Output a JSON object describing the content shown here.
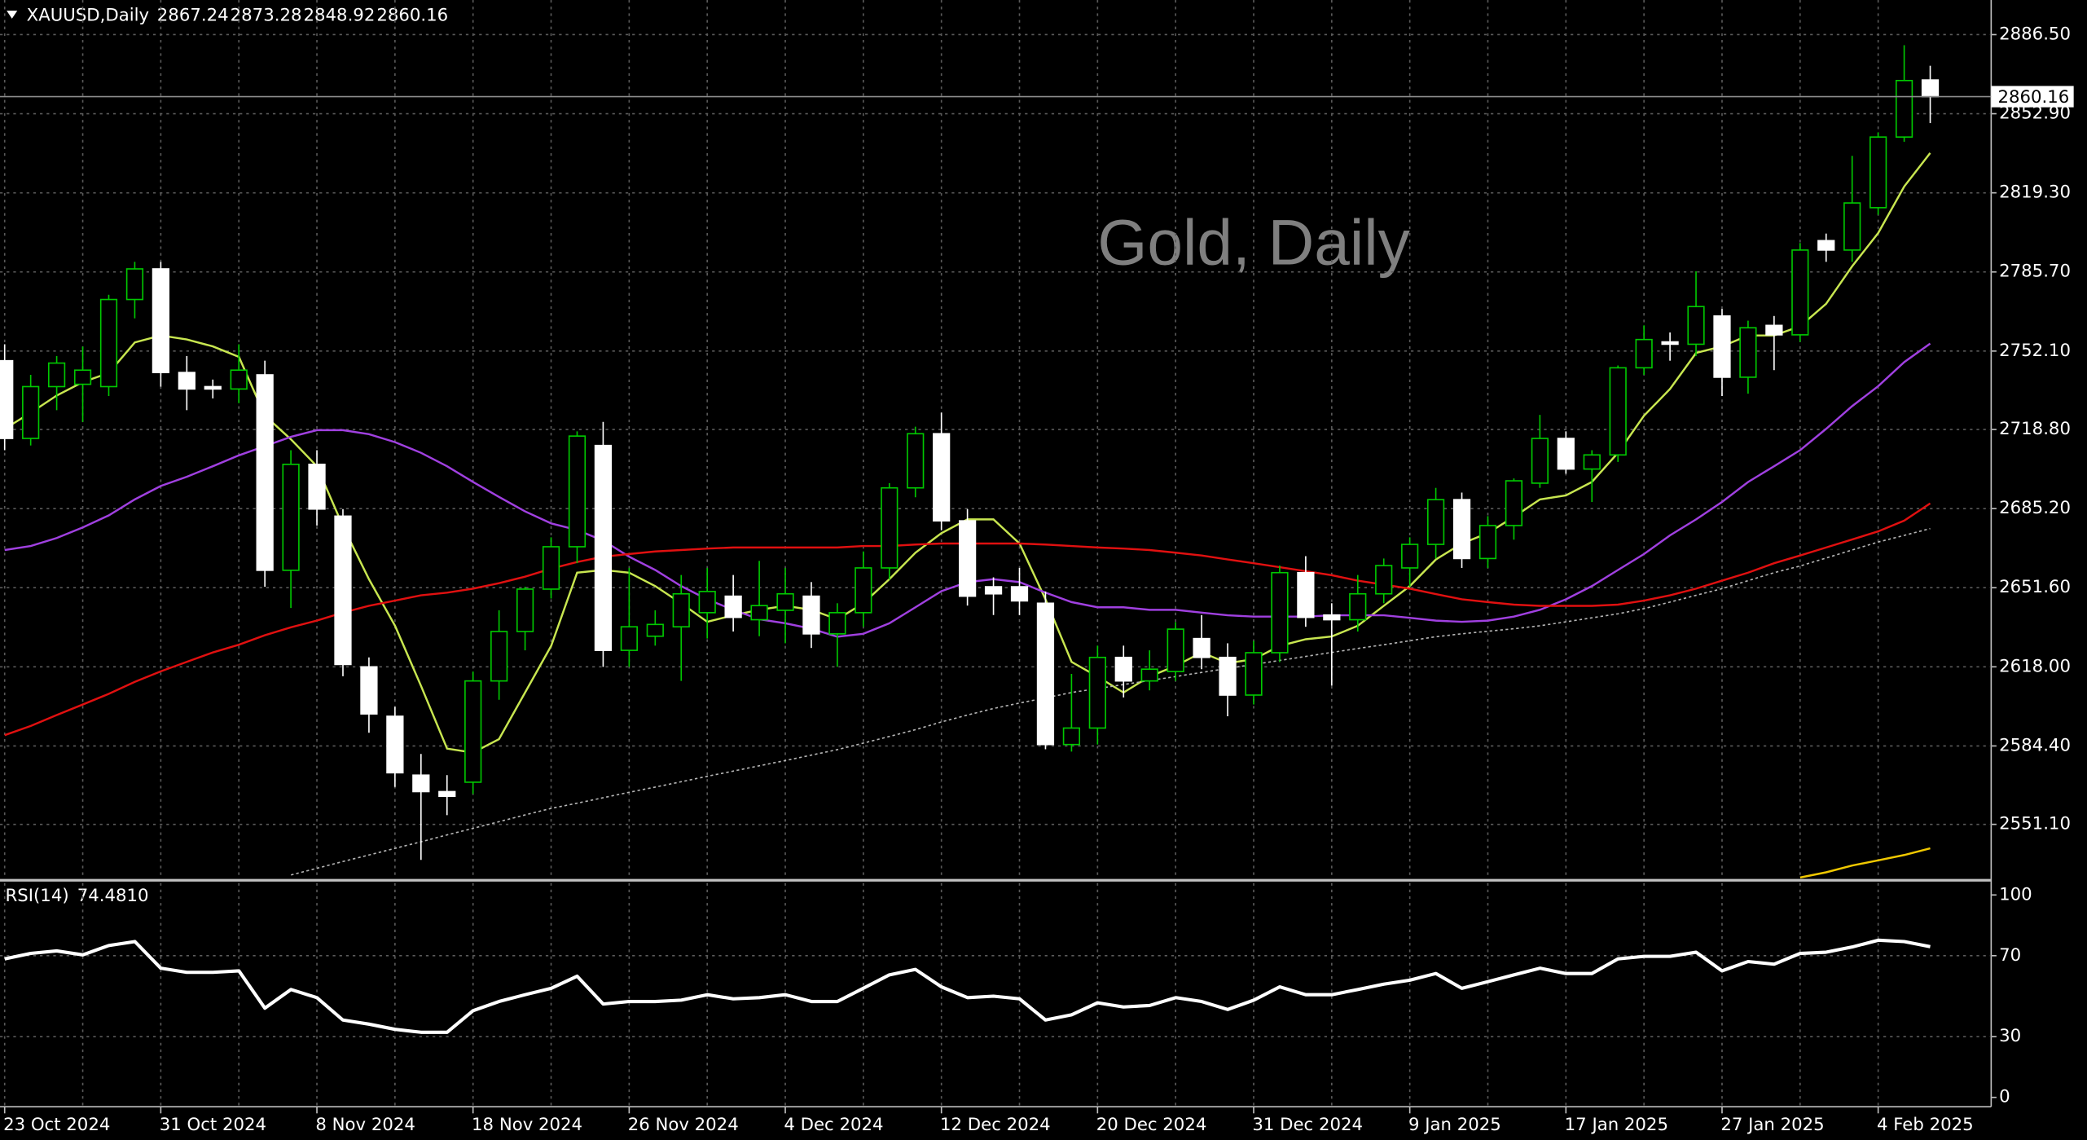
{
  "chart_data": {
    "type": "candlestick",
    "symbol": "XAUUSD,Daily",
    "title": "Gold, Daily",
    "categories": [
      "23 Oct 2024",
      null,
      null,
      null,
      null,
      null,
      "31 Oct 2024",
      null,
      null,
      null,
      null,
      null,
      "8 Nov 2024",
      null,
      null,
      null,
      null,
      null,
      "18 Nov 2024",
      null,
      null,
      null,
      null,
      null,
      "26 Nov 2024",
      null,
      null,
      null,
      null,
      null,
      "4 Dec 2024",
      null,
      null,
      null,
      null,
      null,
      "12 Dec 2024",
      null,
      null,
      null,
      null,
      null,
      "20 Dec 2024",
      null,
      null,
      null,
      null,
      null,
      "31 Dec 2024",
      null,
      null,
      null,
      null,
      null,
      "9 Jan 2025",
      null,
      null,
      null,
      null,
      null,
      "17 Jan 2025",
      null,
      null,
      null,
      null,
      null,
      "27 Jan 2025",
      null,
      null,
      null,
      null,
      null,
      "4 Feb 2025",
      null,
      null
    ],
    "open": [
      2748,
      2715,
      2737,
      2738,
      2737,
      2774,
      2787,
      2743,
      2737,
      2736,
      2742,
      2659,
      2704,
      2682,
      2618,
      2597,
      2572,
      2565,
      2569,
      2612,
      2633,
      2651,
      2669,
      2712,
      2625,
      2631,
      2635,
      2641,
      2648,
      2638,
      2642,
      2648,
      2632,
      2641,
      2660,
      2694,
      2717,
      2680,
      2652,
      2652,
      2645,
      2585,
      2592,
      2622,
      2612,
      2616,
      2630,
      2622,
      2606,
      2624,
      2658,
      2640,
      2638,
      2649,
      2660,
      2670,
      2689,
      2664,
      2678,
      2696,
      2715,
      2702,
      2708,
      2745,
      2756,
      2755,
      2767,
      2741,
      2763,
      2759,
      2799,
      2795,
      2813,
      2843,
      2867.24
    ],
    "high": [
      2755,
      2742,
      2750,
      2754,
      2776,
      2790,
      2790,
      2750,
      2740,
      2755,
      2748,
      2710,
      2710,
      2685,
      2622,
      2601,
      2581,
      2572,
      2616,
      2642,
      2652,
      2673,
      2718,
      2722,
      2660,
      2642,
      2657,
      2660,
      2657,
      2663,
      2660,
      2654,
      2645,
      2667,
      2696,
      2720,
      2726,
      2685,
      2656,
      2660,
      2650,
      2615,
      2627,
      2627,
      2625,
      2637,
      2640,
      2628,
      2629,
      2661,
      2665,
      2645,
      2657,
      2664,
      2673,
      2694,
      2692,
      2682,
      2698,
      2725,
      2718,
      2710,
      2746,
      2763,
      2760,
      2786,
      2770,
      2765,
      2767,
      2798,
      2802,
      2835,
      2845,
      2882,
      2873.28
    ],
    "low": [
      2710,
      2712,
      2727,
      2722,
      2733,
      2766,
      2737,
      2727,
      2732,
      2730,
      2652,
      2643,
      2678,
      2614,
      2590,
      2567,
      2536,
      2555,
      2564,
      2604,
      2625,
      2647,
      2662,
      2618,
      2618,
      2627,
      2612,
      2630,
      2633,
      2631,
      2628,
      2626,
      2618,
      2635,
      2655,
      2690,
      2676,
      2644,
      2640,
      2640,
      2583,
      2582,
      2585,
      2605,
      2608,
      2612,
      2617,
      2597,
      2602,
      2620,
      2635,
      2610,
      2633,
      2645,
      2652,
      2664,
      2660,
      2660,
      2672,
      2694,
      2700,
      2688,
      2705,
      2742,
      2748,
      2750,
      2733,
      2734,
      2744,
      2756,
      2790,
      2790,
      2810,
      2841,
      2848.92
    ],
    "close": [
      2715,
      2737,
      2747,
      2744,
      2774,
      2787,
      2743,
      2736,
      2736,
      2744,
      2659,
      2704,
      2685,
      2619,
      2598,
      2573,
      2565,
      2563,
      2612,
      2633,
      2651,
      2669,
      2716,
      2625,
      2635,
      2636,
      2649,
      2650,
      2639,
      2644,
      2649,
      2632,
      2641,
      2660,
      2694,
      2717,
      2680,
      2648,
      2649,
      2646,
      2585,
      2592,
      2622,
      2612,
      2617,
      2634,
      2622,
      2606,
      2624,
      2658,
      2639,
      2638,
      2649,
      2661,
      2670,
      2689,
      2664,
      2678,
      2697,
      2715,
      2702,
      2708,
      2745,
      2757,
      2755,
      2771,
      2741,
      2762,
      2759,
      2795,
      2795,
      2815,
      2843,
      2867,
      2860.16
    ],
    "up_color": "#00c800",
    "down_color": "#ffffff",
    "moving_averages": [
      {
        "color": "#c8e650",
        "values": [
          2719.1,
          2725.9,
          2733.2,
          2738.9,
          2742.8,
          2755.8,
          2758.7,
          2757.0,
          2754.1,
          2749.6,
          2724.7,
          2714.6,
          2703.2,
          2677.8,
          2655.2,
          2635.4,
          2609.9,
          2583.3,
          2581.6,
          2587.3,
          2607.1,
          2626.9,
          2658.0,
          2659.1,
          2658.0,
          2652.3,
          2645.0,
          2637.1,
          2639.9,
          2642.2,
          2643.9,
          2642.2,
          2638.2,
          2645.0,
          2655.2,
          2666.5,
          2674.8,
          2680.6,
          2680.6,
          2670.4,
          2646.7,
          2620.1,
          2613.9,
          2607.1,
          2613.9,
          2618.4,
          2624.1,
          2619.6,
          2621.2,
          2626.9,
          2629.7,
          2630.9,
          2635.4,
          2643.9,
          2652.3,
          2663.6,
          2670.4,
          2674.8,
          2681.7,
          2689.1,
          2690.8,
          2696.5,
          2708.9,
          2724.7,
          2736.0,
          2751.3,
          2754.1,
          2758.7,
          2758.7,
          2762.6,
          2772.2,
          2788.1,
          2802.2,
          2822.0,
          2836.2
        ]
      },
      {
        "color": "#a040e0",
        "values": [
          2667.6,
          2669.3,
          2672.7,
          2677.2,
          2682.3,
          2689.1,
          2694.8,
          2698.7,
          2703.2,
          2707.8,
          2711.7,
          2715.7,
          2718.5,
          2718.5,
          2716.8,
          2713.4,
          2708.9,
          2703.2,
          2696.5,
          2690.2,
          2684.0,
          2678.9,
          2676.1,
          2671.6,
          2664.8,
          2659.1,
          2652.3,
          2646.7,
          2642.2,
          2638.2,
          2636.5,
          2634.2,
          2630.8,
          2632.0,
          2636.5,
          2643.3,
          2650.1,
          2654.0,
          2655.2,
          2654.0,
          2649.5,
          2645.5,
          2643.3,
          2643.3,
          2642.2,
          2642.2,
          2641.0,
          2639.9,
          2639.3,
          2639.3,
          2639.3,
          2639.9,
          2639.9,
          2639.9,
          2638.8,
          2637.6,
          2637.1,
          2637.6,
          2639.3,
          2642.2,
          2646.7,
          2652.3,
          2659.1,
          2665.9,
          2673.8,
          2680.6,
          2688.0,
          2696.5,
          2703.2,
          2710.0,
          2719.1,
          2728.7,
          2737.2,
          2747.4,
          2755.3
        ]
      },
      {
        "color": "#e01010",
        "values": [
          2589.0,
          2592.9,
          2597.5,
          2602.0,
          2606.5,
          2611.6,
          2616.1,
          2620.1,
          2624.1,
          2627.4,
          2631.4,
          2634.8,
          2637.6,
          2641.0,
          2643.9,
          2646.1,
          2648.4,
          2649.5,
          2651.2,
          2653.5,
          2656.3,
          2659.7,
          2662.5,
          2664.8,
          2665.9,
          2667.0,
          2667.6,
          2668.2,
          2668.7,
          2668.7,
          2668.7,
          2668.7,
          2668.7,
          2669.3,
          2669.3,
          2669.9,
          2670.4,
          2670.4,
          2670.4,
          2670.4,
          2669.9,
          2669.3,
          2668.7,
          2668.2,
          2667.6,
          2666.5,
          2665.3,
          2663.6,
          2662.0,
          2660.3,
          2658.6,
          2656.9,
          2654.6,
          2652.9,
          2651.2,
          2648.9,
          2646.7,
          2645.5,
          2644.4,
          2643.9,
          2643.9,
          2643.9,
          2644.4,
          2646.1,
          2648.4,
          2651.2,
          2654.6,
          2658.0,
          2662.0,
          2665.3,
          2668.7,
          2672.1,
          2675.5,
          2680.1,
          2687.4
        ]
      },
      {
        "color": "#b4b4b4",
        "dashed": true,
        "values": [
          null,
          null,
          null,
          null,
          null,
          null,
          null,
          null,
          null,
          null,
          null,
          2529.6,
          2532.4,
          2535.3,
          2538.1,
          2540.9,
          2543.7,
          2546.6,
          2549.4,
          2552.2,
          2555.1,
          2557.9,
          2560.1,
          2562.4,
          2564.7,
          2566.9,
          2569.2,
          2571.5,
          2573.7,
          2576.0,
          2578.2,
          2580.5,
          2582.8,
          2585.6,
          2588.4,
          2591.3,
          2594.6,
          2597.5,
          2600.3,
          2602.6,
          2604.8,
          2607.1,
          2608.8,
          2610.5,
          2612.2,
          2613.9,
          2615.6,
          2617.3,
          2619.0,
          2620.7,
          2622.4,
          2624.1,
          2625.8,
          2627.4,
          2629.1,
          2630.8,
          2632.0,
          2633.1,
          2634.2,
          2635.4,
          2637.1,
          2638.8,
          2640.5,
          2642.7,
          2645.5,
          2648.4,
          2651.2,
          2654.6,
          2658.0,
          2660.8,
          2664.2,
          2667.6,
          2671.0,
          2673.8,
          2676.7
        ]
      },
      {
        "color": "#f0c800",
        "values": [
          null,
          null,
          null,
          null,
          null,
          null,
          null,
          null,
          null,
          null,
          null,
          null,
          null,
          null,
          null,
          null,
          null,
          null,
          null,
          null,
          null,
          null,
          null,
          null,
          null,
          null,
          null,
          null,
          null,
          null,
          null,
          null,
          null,
          null,
          null,
          null,
          null,
          null,
          null,
          null,
          null,
          null,
          null,
          null,
          null,
          null,
          null,
          null,
          null,
          null,
          null,
          null,
          null,
          null,
          null,
          null,
          null,
          null,
          null,
          null,
          null,
          null,
          null,
          null,
          null,
          null,
          null,
          null,
          null,
          2528.5,
          2530.7,
          2533.6,
          2535.8,
          2538.1,
          2540.9
        ]
      }
    ],
    "ylim": [
      2527.9,
      2901.2
    ],
    "yticks": [
      {
        "value": 2886.5,
        "label": "2886.50"
      },
      {
        "value": 2852.9,
        "label": "2852.90"
      },
      {
        "value": 2819.3,
        "label": "2819.30"
      },
      {
        "value": 2785.7,
        "label": "2785.70"
      },
      {
        "value": 2752.1,
        "label": "2752.10"
      },
      {
        "value": 2718.8,
        "label": "2718.80"
      },
      {
        "value": 2685.2,
        "label": "2685.20"
      },
      {
        "value": 2651.6,
        "label": "2651.60"
      },
      {
        "value": 2618,
        "label": "2618.00"
      },
      {
        "value": 2584.4,
        "label": "2584.40"
      },
      {
        "value": 2551.1,
        "label": "2551.10"
      }
    ],
    "grid": true,
    "rsi": {
      "title": "RSI(14)",
      "current_label": "74.4810",
      "color": "#ffffff",
      "values": [
        68.4,
        71.1,
        72.4,
        70.4,
        75.0,
        77.0,
        63.8,
        61.8,
        61.8,
        62.5,
        44.1,
        53.3,
        49.3,
        38.2,
        36.2,
        33.6,
        32.2,
        32.2,
        42.8,
        47.4,
        50.7,
        53.9,
        59.9,
        46.1,
        47.4,
        47.4,
        48.0,
        50.7,
        48.7,
        49.3,
        50.7,
        47.4,
        47.4,
        53.9,
        60.5,
        63.2,
        54.6,
        49.3,
        50.0,
        48.7,
        38.2,
        40.8,
        46.7,
        44.7,
        45.4,
        49.3,
        47.4,
        43.4,
        48.0,
        54.6,
        50.7,
        50.7,
        53.3,
        55.9,
        57.9,
        61.2,
        53.9,
        57.2,
        60.5,
        63.8,
        61.2,
        61.2,
        68.4,
        69.7,
        69.7,
        71.7,
        62.5,
        67.1,
        65.8,
        71.1,
        71.7,
        74.3,
        77.6,
        77.0,
        74.481
      ],
      "ylim": [
        0,
        100
      ],
      "yticks": [
        100,
        70,
        30,
        0
      ]
    }
  }
}
